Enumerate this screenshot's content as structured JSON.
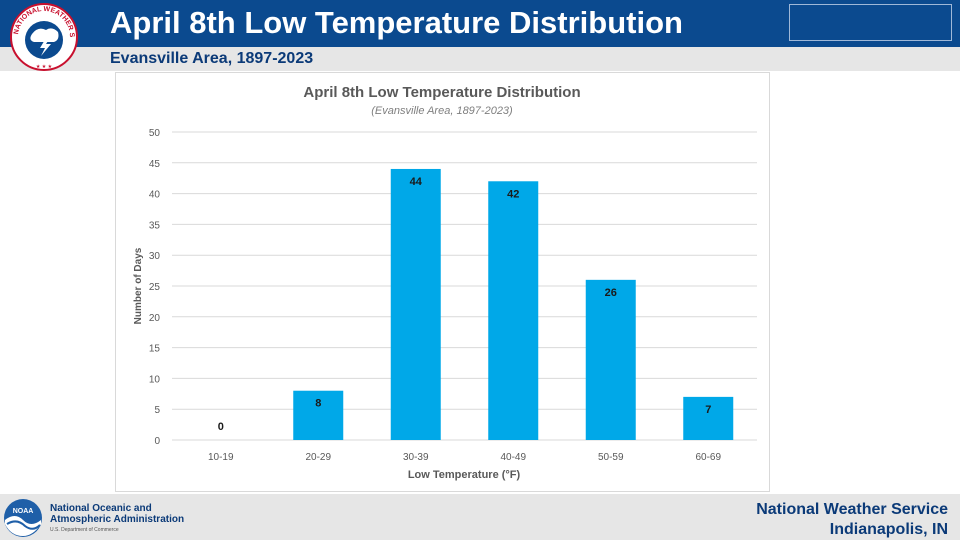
{
  "header": {
    "title": "April 8th Low Temperature Distribution",
    "subtitle": "Evansville Area, 1897-2023",
    "brand_color": "#0b4a8f"
  },
  "logos": {
    "nws_logo_text": "NATIONAL WEATHER SERVICE",
    "noaa_logo_text": "NOAA"
  },
  "footer": {
    "agency_line1": "National Oceanic and",
    "agency_line2": "Atmospheric Administration",
    "department": "U.S. Department of Commerce",
    "office_line1": "National Weather Service",
    "office_line2": "Indianapolis, IN"
  },
  "chart_data": {
    "type": "bar",
    "title": "April 8th Low Temperature Distribution",
    "subtitle": "(Evansville Area, 1897-2023)",
    "xlabel": "Low Temperature (°F)",
    "ylabel": "Number of Days",
    "categories": [
      "10-19",
      "20-29",
      "30-39",
      "40-49",
      "50-59",
      "60-69"
    ],
    "values": [
      0,
      8,
      44,
      42,
      26,
      7
    ],
    "data_labels": [
      "0",
      "8",
      "44",
      "42",
      "26",
      "7"
    ],
    "ylim": [
      0,
      50
    ],
    "yticks": [
      "0",
      "5",
      "10",
      "15",
      "20",
      "25",
      "30",
      "35",
      "40",
      "45",
      "50"
    ],
    "grid": true,
    "bar_color": "#00a8e8"
  }
}
